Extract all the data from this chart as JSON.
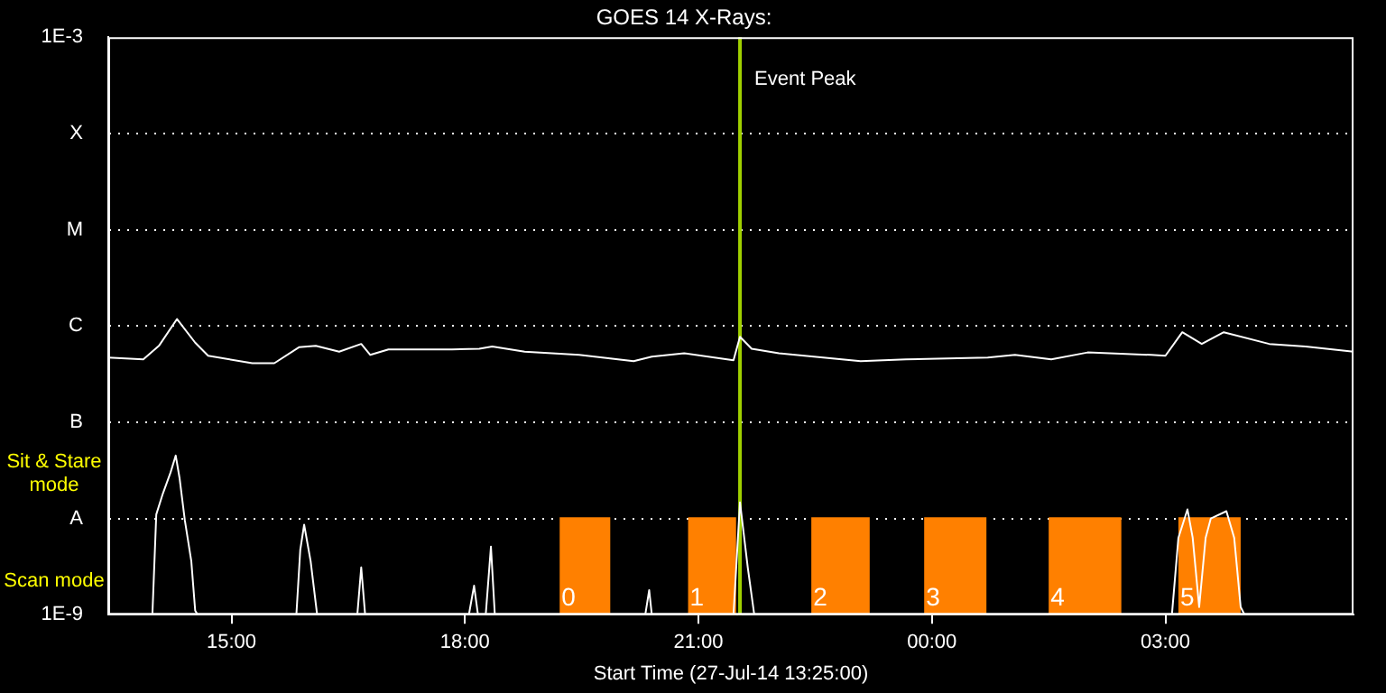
{
  "chart_data": {
    "type": "line",
    "title": "GOES 14 X-Rays:",
    "xlabel": "Start Time (27-Jul-14 13:25:00)",
    "annotations": [
      "Sit & Stare mode",
      "Scan mode"
    ],
    "log": "y",
    "grid": "y",
    "legend": false,
    "marker": "none",
    "xlim": [
      "--07-27T13:25",
      "--07-28T05:25"
    ],
    "xticks": [
      {
        "value": "--07-27T15:00",
        "label": "15:00"
      },
      {
        "value": "--07-27T18:00",
        "label": "18:00"
      },
      {
        "value": "--07-27T21:00",
        "label": "21:00"
      },
      {
        "value": "--07-28T00:00",
        "label": "00:00"
      },
      {
        "value": "--07-28T03:00",
        "label": "03:00"
      }
    ],
    "ylim": [
      1e-09,
      0.001
    ],
    "yticks": [
      {
        "value": 1e-09,
        "label": "1E-9"
      },
      {
        "value": 1e-08,
        "label": "A"
      },
      {
        "value": 1e-07,
        "label": "B"
      },
      {
        "value": 1e-06,
        "label": "C"
      },
      {
        "value": 1e-05,
        "label": "M"
      },
      {
        "value": 0.0001,
        "label": "X"
      },
      {
        "value": 0.001,
        "label": "1E-3"
      }
    ],
    "ref_lines": [
      {
        "axis": "x",
        "value": "--07-27T21:32",
        "label": "Event Peak",
        "color": "#a0d000"
      }
    ],
    "bands": [
      {
        "axis": "x",
        "from": "--07-27T19:13",
        "to": "--07-27T19:52",
        "label": "0",
        "color": "#ff8000"
      },
      {
        "axis": "x",
        "from": "--07-27T20:52",
        "to": "--07-27T21:29",
        "label": "1",
        "color": "#ff8000"
      },
      {
        "axis": "x",
        "from": "--07-27T22:27",
        "to": "--07-27T23:12",
        "label": "2",
        "color": "#ff8000"
      },
      {
        "axis": "x",
        "from": "--07-27T23:54",
        "to": "--07-28T00:42",
        "label": "3",
        "color": "#ff8000"
      },
      {
        "axis": "x",
        "from": "--07-28T01:30",
        "to": "--07-28T02:26",
        "label": "4",
        "color": "#ff8000"
      },
      {
        "axis": "x",
        "from": "--07-28T03:10",
        "to": "--07-28T03:58",
        "label": "5",
        "color": "#ff8000"
      }
    ],
    "series": [
      {
        "color": "#ffffff",
        "x": [
          "--07-27T13:25",
          "--07-27T13:52",
          "--07-27T14:04",
          "--07-27T14:18",
          "--07-27T14:32",
          "--07-27T14:42",
          "--07-27T15:16",
          "--07-27T15:33",
          "--07-27T15:52",
          "--07-27T16:05",
          "--07-27T16:23",
          "--07-27T16:40",
          "--07-27T16:47",
          "--07-27T17:01",
          "--07-27T17:50",
          "--07-27T18:11",
          "--07-27T18:21",
          "--07-27T18:46",
          "--07-27T19:28",
          "--07-27T20:10",
          "--07-27T20:24",
          "--07-27T20:49",
          "--07-27T21:27",
          "--07-27T21:32",
          "--07-27T21:41",
          "--07-27T22:02",
          "--07-27T23:05",
          "--07-27T23:40",
          "--07-28T00:43",
          "--07-28T01:04",
          "--07-28T01:32",
          "--07-28T02:00",
          "--07-28T02:49",
          "--07-28T03:00",
          "--07-28T03:13",
          "--07-28T03:28",
          "--07-28T03:45",
          "--07-28T04:20",
          "--07-28T04:48",
          "--07-28T05:25"
        ],
        "values": [
          4.7e-07,
          4.5e-07,
          6.2e-07,
          1.18e-06,
          6.7e-07,
          4.9e-07,
          4.1e-07,
          4.1e-07,
          6e-07,
          6.2e-07,
          5.4e-07,
          6.5e-07,
          5e-07,
          5.7e-07,
          5.7e-07,
          5.8e-07,
          6.1e-07,
          5.4e-07,
          5e-07,
          4.3e-07,
          4.8e-07,
          5.2e-07,
          4.4e-07,
          7.7e-07,
          5.8e-07,
          5.2e-07,
          4.3e-07,
          4.5e-07,
          4.7e-07,
          5e-07,
          4.5e-07,
          5.3e-07,
          5e-07,
          4.9e-07,
          8.6e-07,
          6.5e-07,
          8.6e-07,
          6.5e-07,
          6.1e-07,
          5.4e-07
        ]
      },
      {
        "color": "#ffffff",
        "x": [
          "--07-27T13:25",
          "--07-27T13:59",
          "--07-27T14:02",
          "--07-27T14:07",
          "--07-27T14:13",
          "--07-27T14:17",
          "--07-27T14:20",
          "--07-27T14:24",
          "--07-27T14:29",
          "--07-27T14:32",
          "--07-27T14:34",
          "--07-27T15:50",
          "--07-27T15:53",
          "--07-27T15:56",
          "--07-27T16:01",
          "--07-27T16:06",
          "--07-27T16:37",
          "--07-27T16:40",
          "--07-27T16:43",
          "--07-27T18:03",
          "--07-27T18:07",
          "--07-27T18:10",
          "--07-27T18:16",
          "--07-27T18:20",
          "--07-27T18:23",
          "--07-27T20:19",
          "--07-27T20:22",
          "--07-27T20:24",
          "--07-27T21:27",
          "--07-27T21:32",
          "--07-27T21:38",
          "--07-27T21:43",
          "--07-28T03:05",
          "--07-28T03:10",
          "--07-28T03:17",
          "--07-28T03:21",
          "--07-28T03:26",
          "--07-28T03:31",
          "--07-28T03:35",
          "--07-28T03:47",
          "--07-28T03:53",
          "--07-28T03:58",
          "--07-28T04:01",
          "--07-28T05:25"
        ],
        "values": [
          1e-09,
          1e-09,
          1.1e-08,
          1.8e-08,
          3e-08,
          4.5e-08,
          2.6e-08,
          9.6e-09,
          3.6e-09,
          1.1e-09,
          1e-09,
          1e-09,
          4.7e-09,
          8.6e-09,
          3.6e-09,
          1e-09,
          1e-09,
          3.1e-09,
          1e-09,
          1e-09,
          2e-09,
          1e-09,
          1e-09,
          5.1e-09,
          1e-09,
          1e-09,
          1.8e-09,
          1e-09,
          1e-09,
          1.47e-08,
          3.1e-09,
          1e-09,
          1e-09,
          6.3e-09,
          1.24e-08,
          6.3e-09,
          1.2e-09,
          6.3e-09,
          1e-08,
          1.19e-08,
          6.3e-09,
          1.2e-09,
          1e-09,
          1e-09
        ]
      }
    ]
  }
}
